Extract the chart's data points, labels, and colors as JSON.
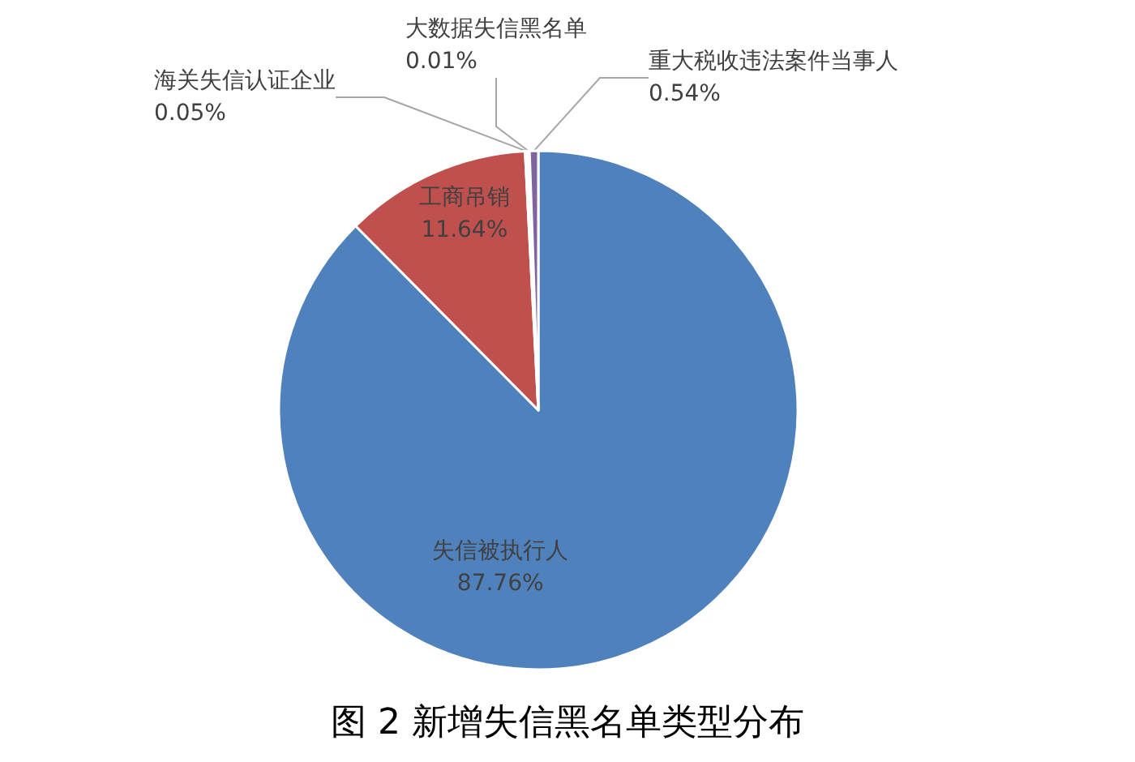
{
  "chart_data": {
    "type": "pie",
    "title": "图 2 新增失信黑名单类型分布",
    "categories": [
      "失信被执行人",
      "工商吊销",
      "海关失信认证企业",
      "大数据失信黑名单",
      "重大税收违法案件当事人"
    ],
    "values": [
      87.76,
      11.64,
      0.05,
      0.01,
      0.54
    ],
    "colors": [
      "#4f81bd",
      "#c0504d",
      "#9bbb59",
      "#4bacc6",
      "#8064a2"
    ],
    "value_labels": [
      "87.76%",
      "11.64%",
      "0.05%",
      "0.01%",
      "0.54%"
    ],
    "legend": false
  }
}
